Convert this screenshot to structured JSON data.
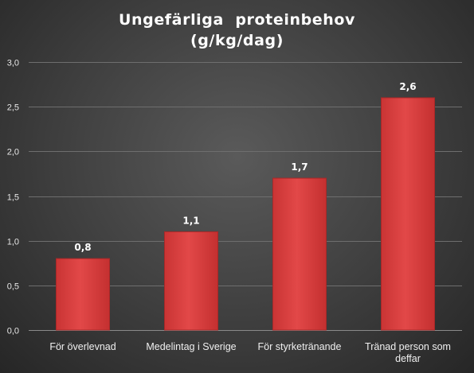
{
  "chart_data": {
    "type": "bar",
    "title_lines": [
      "Ungefärliga  proteinbehov",
      "(g/kg/dag)"
    ],
    "categories": [
      [
        "För överlevnad"
      ],
      [
        "Medelintag i Sverige"
      ],
      [
        "För styrketränande"
      ],
      [
        "Tränad person som",
        "deffar"
      ]
    ],
    "values": [
      0.8,
      1.1,
      1.7,
      2.6
    ],
    "data_labels": [
      "0,8",
      "1,1",
      "1,7",
      "2,6"
    ],
    "yticks": [
      0,
      0.5,
      1.0,
      1.5,
      2.0,
      2.5,
      3.0
    ],
    "ytick_labels": [
      "0,0",
      "0,5",
      "1,0",
      "1,5",
      "2,0",
      "2,5",
      "3,0"
    ],
    "ylim": [
      0,
      3
    ],
    "grid": true,
    "bar_color": "#d94040",
    "bar_edge_color": "#a82828",
    "background_color": "#3e3e3e",
    "text_color": "#ffffff"
  }
}
